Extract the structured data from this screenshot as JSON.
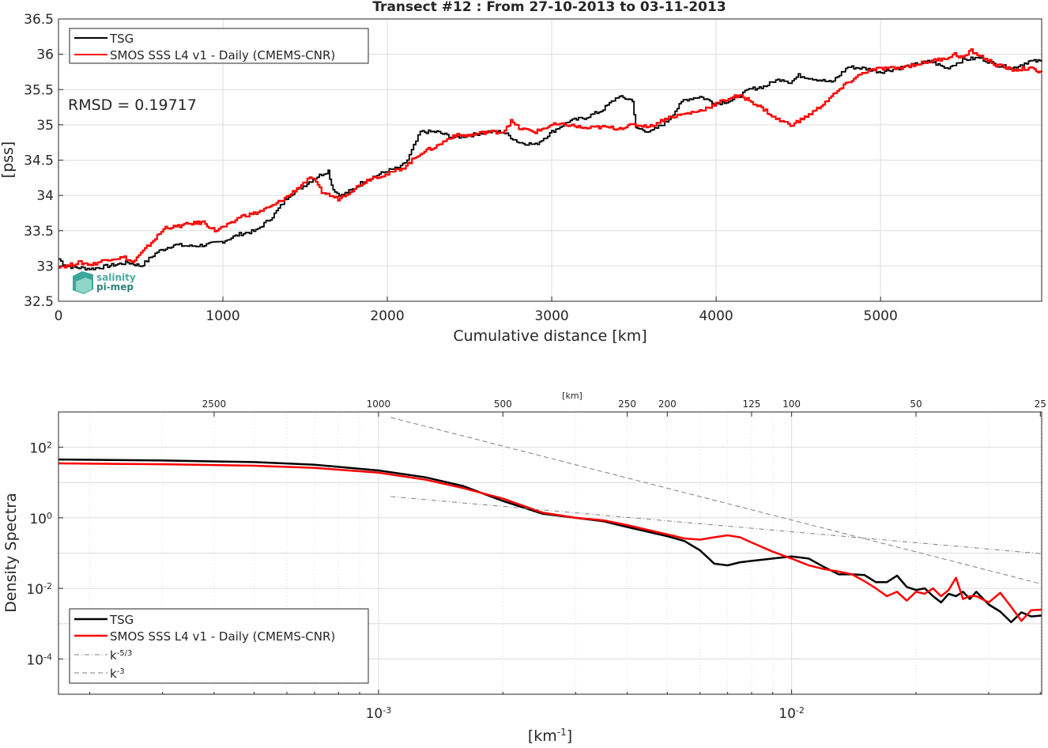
{
  "chart_data": [
    {
      "type": "line",
      "title": "Transect #12 : From 27-10-2013 to 03-11-2013",
      "xlabel": "Cumulative distance [km]",
      "ylabel": "[pss]",
      "xlim": [
        0,
        5980
      ],
      "ylim": [
        32.5,
        36.5
      ],
      "xticks": [
        "0",
        "1000",
        "2000",
        "3000",
        "4000",
        "5000"
      ],
      "yticks": [
        "32.5",
        "33",
        "33.5",
        "34",
        "34.5",
        "35",
        "35.5",
        "36",
        "36.5"
      ],
      "grid": true,
      "legend_position": "top-left",
      "annotation": "RMSD = 0.19717",
      "logo": {
        "line1": "salinity",
        "line2": "pi-mep"
      },
      "series": [
        {
          "name": "TSG",
          "color": "#000000",
          "x": [
            0,
            40,
            100,
            200,
            300,
            420,
            500,
            600,
            700,
            800,
            900,
            1000,
            1100,
            1200,
            1300,
            1400,
            1500,
            1560,
            1600,
            1640,
            1660,
            1680,
            1720,
            1800,
            1850,
            1900,
            1950,
            2000,
            2080,
            2120,
            2160,
            2200,
            2300,
            2400,
            2500,
            2600,
            2700,
            2800,
            2900,
            3000,
            3100,
            3200,
            3300,
            3400,
            3490,
            3510,
            3520,
            3600,
            3700,
            3800,
            3900,
            4000,
            4100,
            4200,
            4300,
            4350,
            4400,
            4450,
            4500,
            4600,
            4700,
            4800,
            4900,
            5000,
            5100,
            5200,
            5300,
            5400,
            5500,
            5600,
            5700,
            5800,
            5900,
            5980
          ],
          "y": [
            33.1,
            33.0,
            32.98,
            32.96,
            33.0,
            33.05,
            33.0,
            33.2,
            33.3,
            33.28,
            33.3,
            33.35,
            33.45,
            33.5,
            33.7,
            34.0,
            34.15,
            34.25,
            34.3,
            34.35,
            34.15,
            34.05,
            34.0,
            34.1,
            34.2,
            34.25,
            34.3,
            34.35,
            34.4,
            34.5,
            34.7,
            34.9,
            34.9,
            34.82,
            34.85,
            34.9,
            34.9,
            34.75,
            34.72,
            34.9,
            35.05,
            35.1,
            35.2,
            35.4,
            35.35,
            34.95,
            34.95,
            34.9,
            35.05,
            35.35,
            35.4,
            35.3,
            35.35,
            35.5,
            35.55,
            35.62,
            35.65,
            35.6,
            35.7,
            35.65,
            35.6,
            35.82,
            35.8,
            35.75,
            35.8,
            35.85,
            35.9,
            35.8,
            35.92,
            35.95,
            35.85,
            35.8,
            35.9,
            35.9
          ]
        },
        {
          "name": "SMOS SSS L4 v1 - Daily (CMEMS-CNR)",
          "color": "#ff0000",
          "x": [
            0,
            50,
            120,
            200,
            300,
            400,
            450,
            550,
            650,
            700,
            800,
            880,
            950,
            1000,
            1050,
            1100,
            1200,
            1300,
            1400,
            1500,
            1540,
            1600,
            1650,
            1700,
            1800,
            1900,
            2000,
            2100,
            2150,
            2200,
            2300,
            2400,
            2500,
            2600,
            2700,
            2750,
            2800,
            2900,
            3000,
            3100,
            3200,
            3300,
            3400,
            3500,
            3600,
            3700,
            3800,
            3900,
            4000,
            4050,
            4100,
            4150,
            4200,
            4300,
            4350,
            4400,
            4450,
            4500,
            4600,
            4700,
            4800,
            4900,
            5000,
            5100,
            5200,
            5300,
            5400,
            5450,
            5500,
            5550,
            5600,
            5700,
            5800,
            5900,
            5980
          ],
          "y": [
            33.0,
            33.0,
            33.05,
            33.02,
            33.1,
            33.12,
            33.05,
            33.3,
            33.55,
            33.55,
            33.6,
            33.62,
            33.5,
            33.55,
            33.6,
            33.7,
            33.75,
            33.85,
            34.0,
            34.2,
            34.25,
            34.05,
            34.0,
            33.95,
            34.1,
            34.25,
            34.3,
            34.4,
            34.5,
            34.6,
            34.7,
            34.85,
            34.85,
            34.9,
            34.9,
            35.05,
            34.95,
            34.9,
            35.0,
            35.0,
            34.95,
            34.97,
            34.95,
            35.0,
            34.98,
            35.1,
            35.15,
            35.2,
            35.3,
            35.35,
            35.4,
            35.4,
            35.35,
            35.2,
            35.1,
            35.05,
            35.0,
            35.05,
            35.2,
            35.4,
            35.6,
            35.75,
            35.8,
            35.8,
            35.85,
            35.9,
            35.95,
            36.0,
            35.95,
            36.05,
            35.98,
            35.85,
            35.78,
            35.8,
            35.75
          ]
        }
      ]
    },
    {
      "type": "line",
      "xlabel": "[km⁻¹]",
      "ylabel": "Density Spectra",
      "top_axis_label": "[km]",
      "x_scale": "log",
      "y_scale": "log",
      "xlim": [
        0.000168,
        0.0403
      ],
      "ylim": [
        1e-05,
        1000
      ],
      "xticks": [
        {
          "value": 0.001,
          "base": "10",
          "exp": "-3"
        },
        {
          "value": 0.01,
          "base": "10",
          "exp": "-2"
        }
      ],
      "yticks": [
        {
          "value": 100,
          "base": "10",
          "exp": "2"
        },
        {
          "value": 1,
          "base": "10",
          "exp": "0"
        },
        {
          "value": 0.01,
          "base": "10",
          "exp": "-2"
        },
        {
          "value": 0.0001,
          "base": "10",
          "exp": "-4"
        }
      ],
      "top_ticks": [
        {
          "km": 2500,
          "label": "2500"
        },
        {
          "km": 1000,
          "label": "1000"
        },
        {
          "km": 500,
          "label": "500"
        },
        {
          "km": 250,
          "label": "250"
        },
        {
          "km": 200,
          "label": "200"
        },
        {
          "km": 125,
          "label": "125"
        },
        {
          "km": 100,
          "label": "100"
        },
        {
          "km": 50,
          "label": "50"
        },
        {
          "km": 25,
          "label": "25"
        }
      ],
      "grid": true,
      "legend_position": "bottom-left",
      "series": [
        {
          "name": "TSG",
          "color": "#000000",
          "x": [
            0.000168,
            0.0003,
            0.0005,
            0.0007,
            0.001,
            0.0013,
            0.0016,
            0.002,
            0.0025,
            0.003,
            0.0035,
            0.004,
            0.0045,
            0.005,
            0.0055,
            0.006,
            0.0065,
            0.007,
            0.0075,
            0.008,
            0.009,
            0.01,
            0.011,
            0.012,
            0.013,
            0.014,
            0.015,
            0.016,
            0.017,
            0.018,
            0.019,
            0.02,
            0.021,
            0.022,
            0.023,
            0.024,
            0.025,
            0.026,
            0.027,
            0.028,
            0.03,
            0.032,
            0.034,
            0.036,
            0.038,
            0.0403
          ],
          "y": [
            45,
            42,
            38,
            32,
            22,
            14,
            8,
            3,
            1.3,
            1.0,
            0.8,
            0.55,
            0.4,
            0.3,
            0.22,
            0.12,
            0.05,
            0.045,
            0.055,
            0.06,
            0.07,
            0.08,
            0.07,
            0.04,
            0.025,
            0.025,
            0.024,
            0.015,
            0.015,
            0.023,
            0.011,
            0.009,
            0.01,
            0.006,
            0.004,
            0.007,
            0.006,
            0.008,
            0.005,
            0.008,
            0.0035,
            0.0022,
            0.0011,
            0.0021,
            0.0016,
            0.0017
          ]
        },
        {
          "name": "SMOS SSS L4 v1 - Daily (CMEMS-CNR)",
          "color": "#ff0000",
          "x": [
            0.000168,
            0.0003,
            0.0005,
            0.0007,
            0.001,
            0.0013,
            0.0016,
            0.002,
            0.0025,
            0.003,
            0.0035,
            0.004,
            0.0045,
            0.005,
            0.0055,
            0.006,
            0.0065,
            0.007,
            0.0075,
            0.008,
            0.009,
            0.01,
            0.011,
            0.012,
            0.013,
            0.014,
            0.015,
            0.016,
            0.017,
            0.018,
            0.019,
            0.02,
            0.021,
            0.022,
            0.023,
            0.024,
            0.025,
            0.026,
            0.027,
            0.028,
            0.03,
            0.032,
            0.034,
            0.036,
            0.038,
            0.0403
          ],
          "y": [
            35,
            33,
            30,
            26,
            19,
            12,
            7,
            3.5,
            1.4,
            1.0,
            0.85,
            0.62,
            0.45,
            0.34,
            0.26,
            0.24,
            0.28,
            0.32,
            0.28,
            0.2,
            0.11,
            0.07,
            0.045,
            0.035,
            0.03,
            0.025,
            0.016,
            0.01,
            0.006,
            0.008,
            0.0045,
            0.008,
            0.007,
            0.01,
            0.006,
            0.009,
            0.02,
            0.005,
            0.006,
            0.006,
            0.004,
            0.0075,
            0.003,
            0.0012,
            0.0024,
            0.0025
          ]
        },
        {
          "name": "k-5/3",
          "style": "dash-dot",
          "color": "#808080",
          "x": [
            0.00107,
            0.0403
          ],
          "y": [
            4.0,
            0.096
          ]
        },
        {
          "name": "k-3",
          "style": "dashed",
          "color": "#808080",
          "x": [
            0.00107,
            0.0403
          ],
          "y": [
            700,
            0.0133
          ]
        }
      ],
      "legend_labels": {
        "k53_base": "k",
        "k53_exp": "-5/3",
        "k3_base": "k",
        "k3_exp": "-3"
      }
    }
  ]
}
